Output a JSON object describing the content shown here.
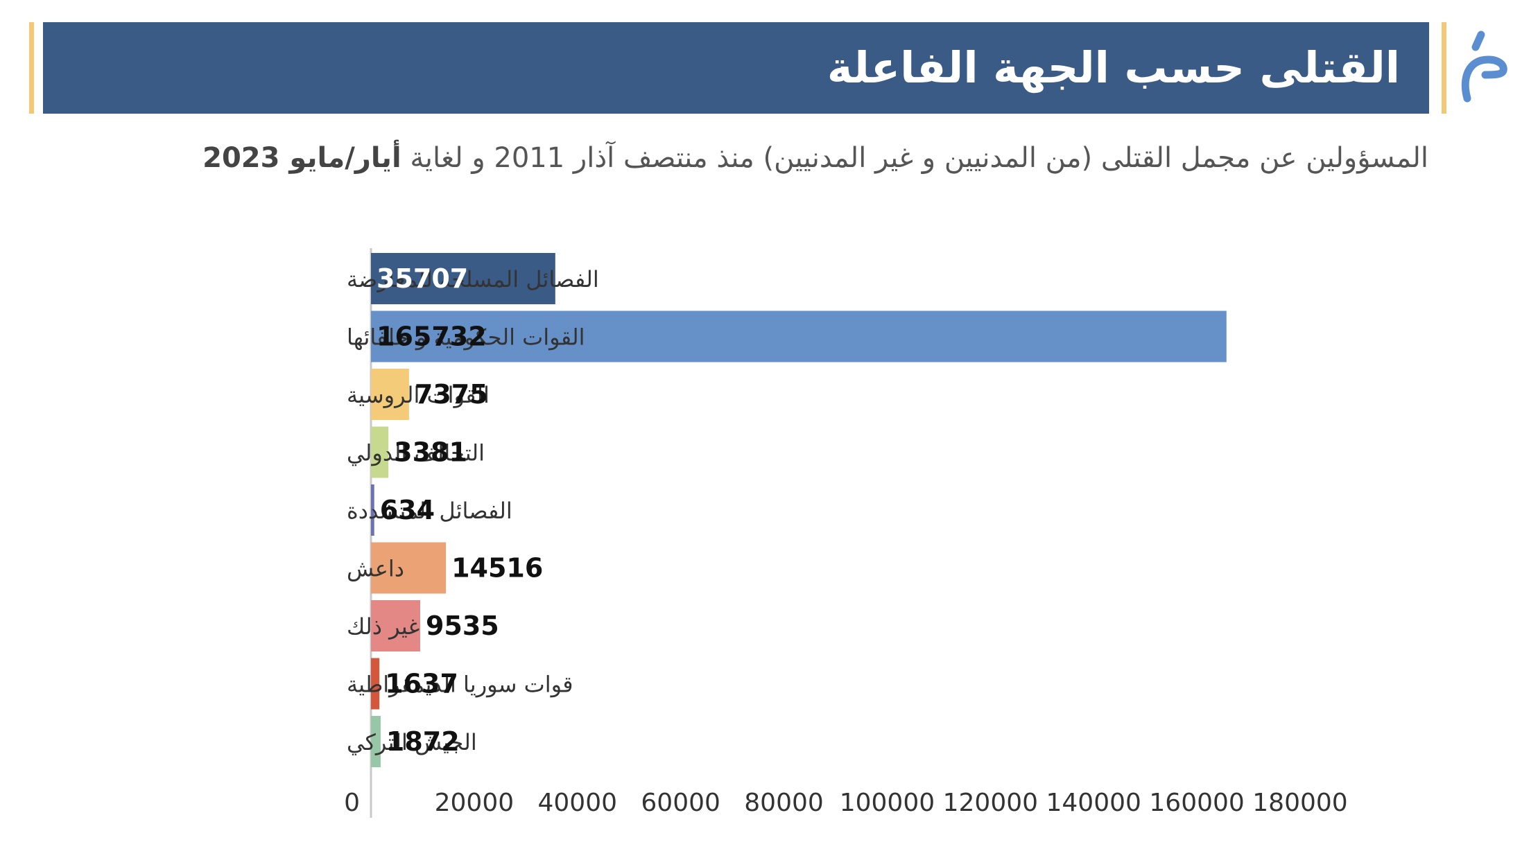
{
  "header": {
    "title": "القتلى حسب الجهة الفاعلة",
    "subtitle_main": "المسؤولين عن مجمل القتلى (من المدنيين و غير المدنيين) منذ منتصف آذار 2011 و لغاية",
    "subtitle_date": "أيار/مايو 2023"
  },
  "colors": {
    "title_bar": "#3b5b87",
    "accent": "#f2c876",
    "logo": "#5a8ed0"
  },
  "chart_data": {
    "type": "bar",
    "orientation": "horizontal",
    "title": "",
    "xlabel": "",
    "ylabel": "",
    "xlim": [
      0,
      180000
    ],
    "ticks": [
      0,
      20000,
      40000,
      60000,
      80000,
      100000,
      120000,
      140000,
      160000,
      180000
    ],
    "grid": false,
    "categories": [
      "الفصائل المسلحة للمعارضة",
      "القوات الحكومية و حلفائها",
      "القوات الروسية",
      "التحالف الدولي",
      "الفصائل المتشددة",
      "داعش",
      "غير ذلك",
      "قوات سوريا الديمقراطية",
      "الجيش التركي"
    ],
    "values": [
      35707,
      165732,
      7375,
      3381,
      634,
      14516,
      9535,
      1637,
      1872
    ],
    "bar_colors": [
      "#3b5b87",
      "#6690c8",
      "#f4cb79",
      "#c6d98e",
      "#6a72b3",
      "#eba274",
      "#e48885",
      "#d4563b",
      "#97c7a7"
    ],
    "value_label_colors": [
      "#ffffff",
      "#111111",
      "#111111",
      "#111111",
      "#111111",
      "#111111",
      "#111111",
      "#111111",
      "#111111"
    ]
  }
}
